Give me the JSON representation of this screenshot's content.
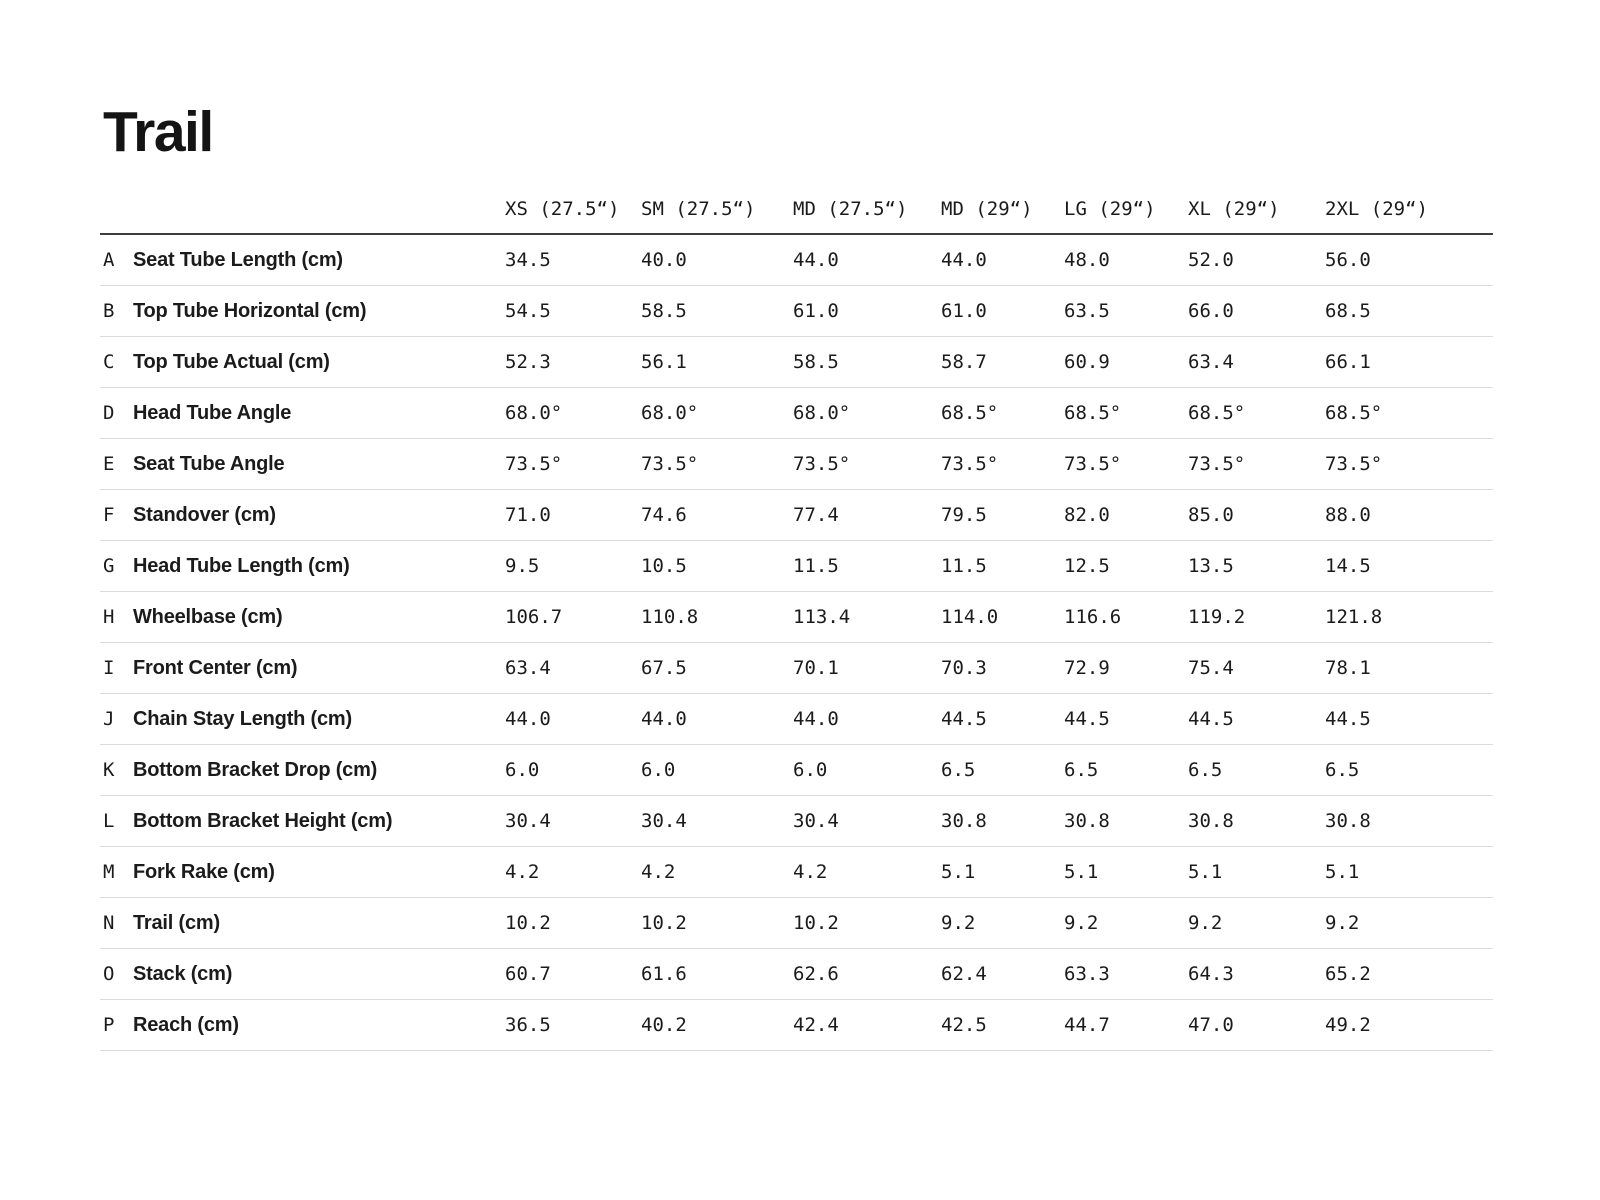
{
  "page": {
    "title": "Trail"
  },
  "table": {
    "columns": [
      "XS (27.5“)",
      "SM (27.5“)",
      "MD (27.5“)",
      "MD (29“)",
      "LG (29“)",
      "XL (29“)",
      "2XL (29“)"
    ],
    "rows": [
      {
        "letter": "A",
        "label": "Seat Tube Length (cm)",
        "values": [
          "34.5",
          "40.0",
          "44.0",
          "44.0",
          "48.0",
          "52.0",
          "56.0"
        ]
      },
      {
        "letter": "B",
        "label": "Top Tube Horizontal (cm)",
        "values": [
          "54.5",
          "58.5",
          "61.0",
          "61.0",
          "63.5",
          "66.0",
          "68.5"
        ]
      },
      {
        "letter": "C",
        "label": "Top Tube Actual (cm)",
        "values": [
          "52.3",
          "56.1",
          "58.5",
          "58.7",
          "60.9",
          "63.4",
          "66.1"
        ]
      },
      {
        "letter": "D",
        "label": "Head Tube Angle",
        "values": [
          "68.0°",
          "68.0°",
          "68.0°",
          "68.5°",
          "68.5°",
          "68.5°",
          "68.5°"
        ]
      },
      {
        "letter": "E",
        "label": "Seat Tube Angle",
        "values": [
          "73.5°",
          "73.5°",
          "73.5°",
          "73.5°",
          "73.5°",
          "73.5°",
          "73.5°"
        ]
      },
      {
        "letter": "F",
        "label": "Standover (cm)",
        "values": [
          "71.0",
          "74.6",
          "77.4",
          "79.5",
          "82.0",
          "85.0",
          "88.0"
        ]
      },
      {
        "letter": "G",
        "label": "Head Tube Length (cm)",
        "values": [
          "9.5",
          "10.5",
          "11.5",
          "11.5",
          "12.5",
          "13.5",
          "14.5"
        ]
      },
      {
        "letter": "H",
        "label": "Wheelbase (cm)",
        "values": [
          "106.7",
          "110.8",
          "113.4",
          "114.0",
          "116.6",
          "119.2",
          "121.8"
        ]
      },
      {
        "letter": "I",
        "label": "Front Center (cm)",
        "values": [
          "63.4",
          "67.5",
          "70.1",
          "70.3",
          "72.9",
          "75.4",
          "78.1"
        ]
      },
      {
        "letter": "J",
        "label": "Chain Stay Length (cm)",
        "values": [
          "44.0",
          "44.0",
          "44.0",
          "44.5",
          "44.5",
          "44.5",
          "44.5"
        ]
      },
      {
        "letter": "K",
        "label": "Bottom Bracket Drop (cm)",
        "values": [
          "6.0",
          "6.0",
          "6.0",
          "6.5",
          "6.5",
          "6.5",
          "6.5"
        ]
      },
      {
        "letter": "L",
        "label": "Bottom Bracket Height (cm)",
        "values": [
          "30.4",
          "30.4",
          "30.4",
          "30.8",
          "30.8",
          "30.8",
          "30.8"
        ]
      },
      {
        "letter": "M",
        "label": "Fork Rake (cm)",
        "values": [
          "4.2",
          "4.2",
          "4.2",
          "5.1",
          "5.1",
          "5.1",
          "5.1"
        ]
      },
      {
        "letter": "N",
        "label": "Trail (cm)",
        "values": [
          "10.2",
          "10.2",
          "10.2",
          "9.2",
          "9.2",
          "9.2",
          "9.2"
        ]
      },
      {
        "letter": "O",
        "label": "Stack (cm)",
        "values": [
          "60.7",
          "61.6",
          "62.6",
          "62.4",
          "63.3",
          "64.3",
          "65.2"
        ]
      },
      {
        "letter": "P",
        "label": "Reach (cm)",
        "values": [
          "36.5",
          "40.2",
          "42.4",
          "42.5",
          "44.7",
          "47.0",
          "49.2"
        ]
      }
    ]
  }
}
